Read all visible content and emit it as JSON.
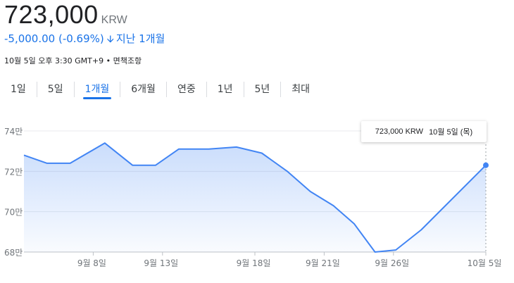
{
  "header": {
    "price": "723,000",
    "currency": "KRW",
    "change": "-5,000.00 (-0.69%)",
    "change_period": "지난 1개월",
    "arrow_icon": "arrow-down-icon",
    "timestamp": "10월 5일 오후 3:30 GMT+9",
    "disclaimer": "면책조항"
  },
  "range_tabs": [
    {
      "label": "1일",
      "active": false
    },
    {
      "label": "5일",
      "active": false
    },
    {
      "label": "1개월",
      "active": true
    },
    {
      "label": "6개월",
      "active": false
    },
    {
      "label": "연중",
      "active": false
    },
    {
      "label": "1년",
      "active": false
    },
    {
      "label": "5년",
      "active": false
    },
    {
      "label": "최대",
      "active": false
    }
  ],
  "tooltip": {
    "value": "723,000 KRW",
    "date": "10월 5일 (목)"
  },
  "colors": {
    "accent": "#1a73e8",
    "line": "#4285f4"
  },
  "chart_data": {
    "type": "area",
    "title": "",
    "xlabel": "",
    "ylabel": "",
    "ylim": [
      680000,
      740000
    ],
    "y_ticks": [
      {
        "value": 740000,
        "label": "74만"
      },
      {
        "value": 720000,
        "label": "72만"
      },
      {
        "value": 700000,
        "label": "70만"
      },
      {
        "value": 680000,
        "label": "68만"
      }
    ],
    "x_ticks": [
      {
        "index": 3,
        "label": "9월 8일"
      },
      {
        "index": 6,
        "label": "9월 13일"
      },
      {
        "index": 10,
        "label": "9월 18일"
      },
      {
        "index": 13,
        "label": "9월 21일"
      },
      {
        "index": 16,
        "label": "9월 26일"
      },
      {
        "index": 20,
        "label": "10월 5일"
      }
    ],
    "series": [
      {
        "values": [
          728000,
          724000,
          724000,
          734000,
          723000,
          723000,
          731000,
          731000,
          732000,
          729000,
          720000,
          710000,
          703000,
          694000,
          680000,
          681000,
          691000,
          723000
        ],
        "x_index": [
          0,
          1,
          2,
          3.5,
          4.7,
          5.7,
          6.7,
          8,
          9.2,
          10.3,
          11.4,
          12.4,
          13.4,
          14.3,
          15.2,
          16.1,
          17.2,
          20
        ]
      }
    ],
    "grid": "horizontal",
    "legend": "none"
  }
}
